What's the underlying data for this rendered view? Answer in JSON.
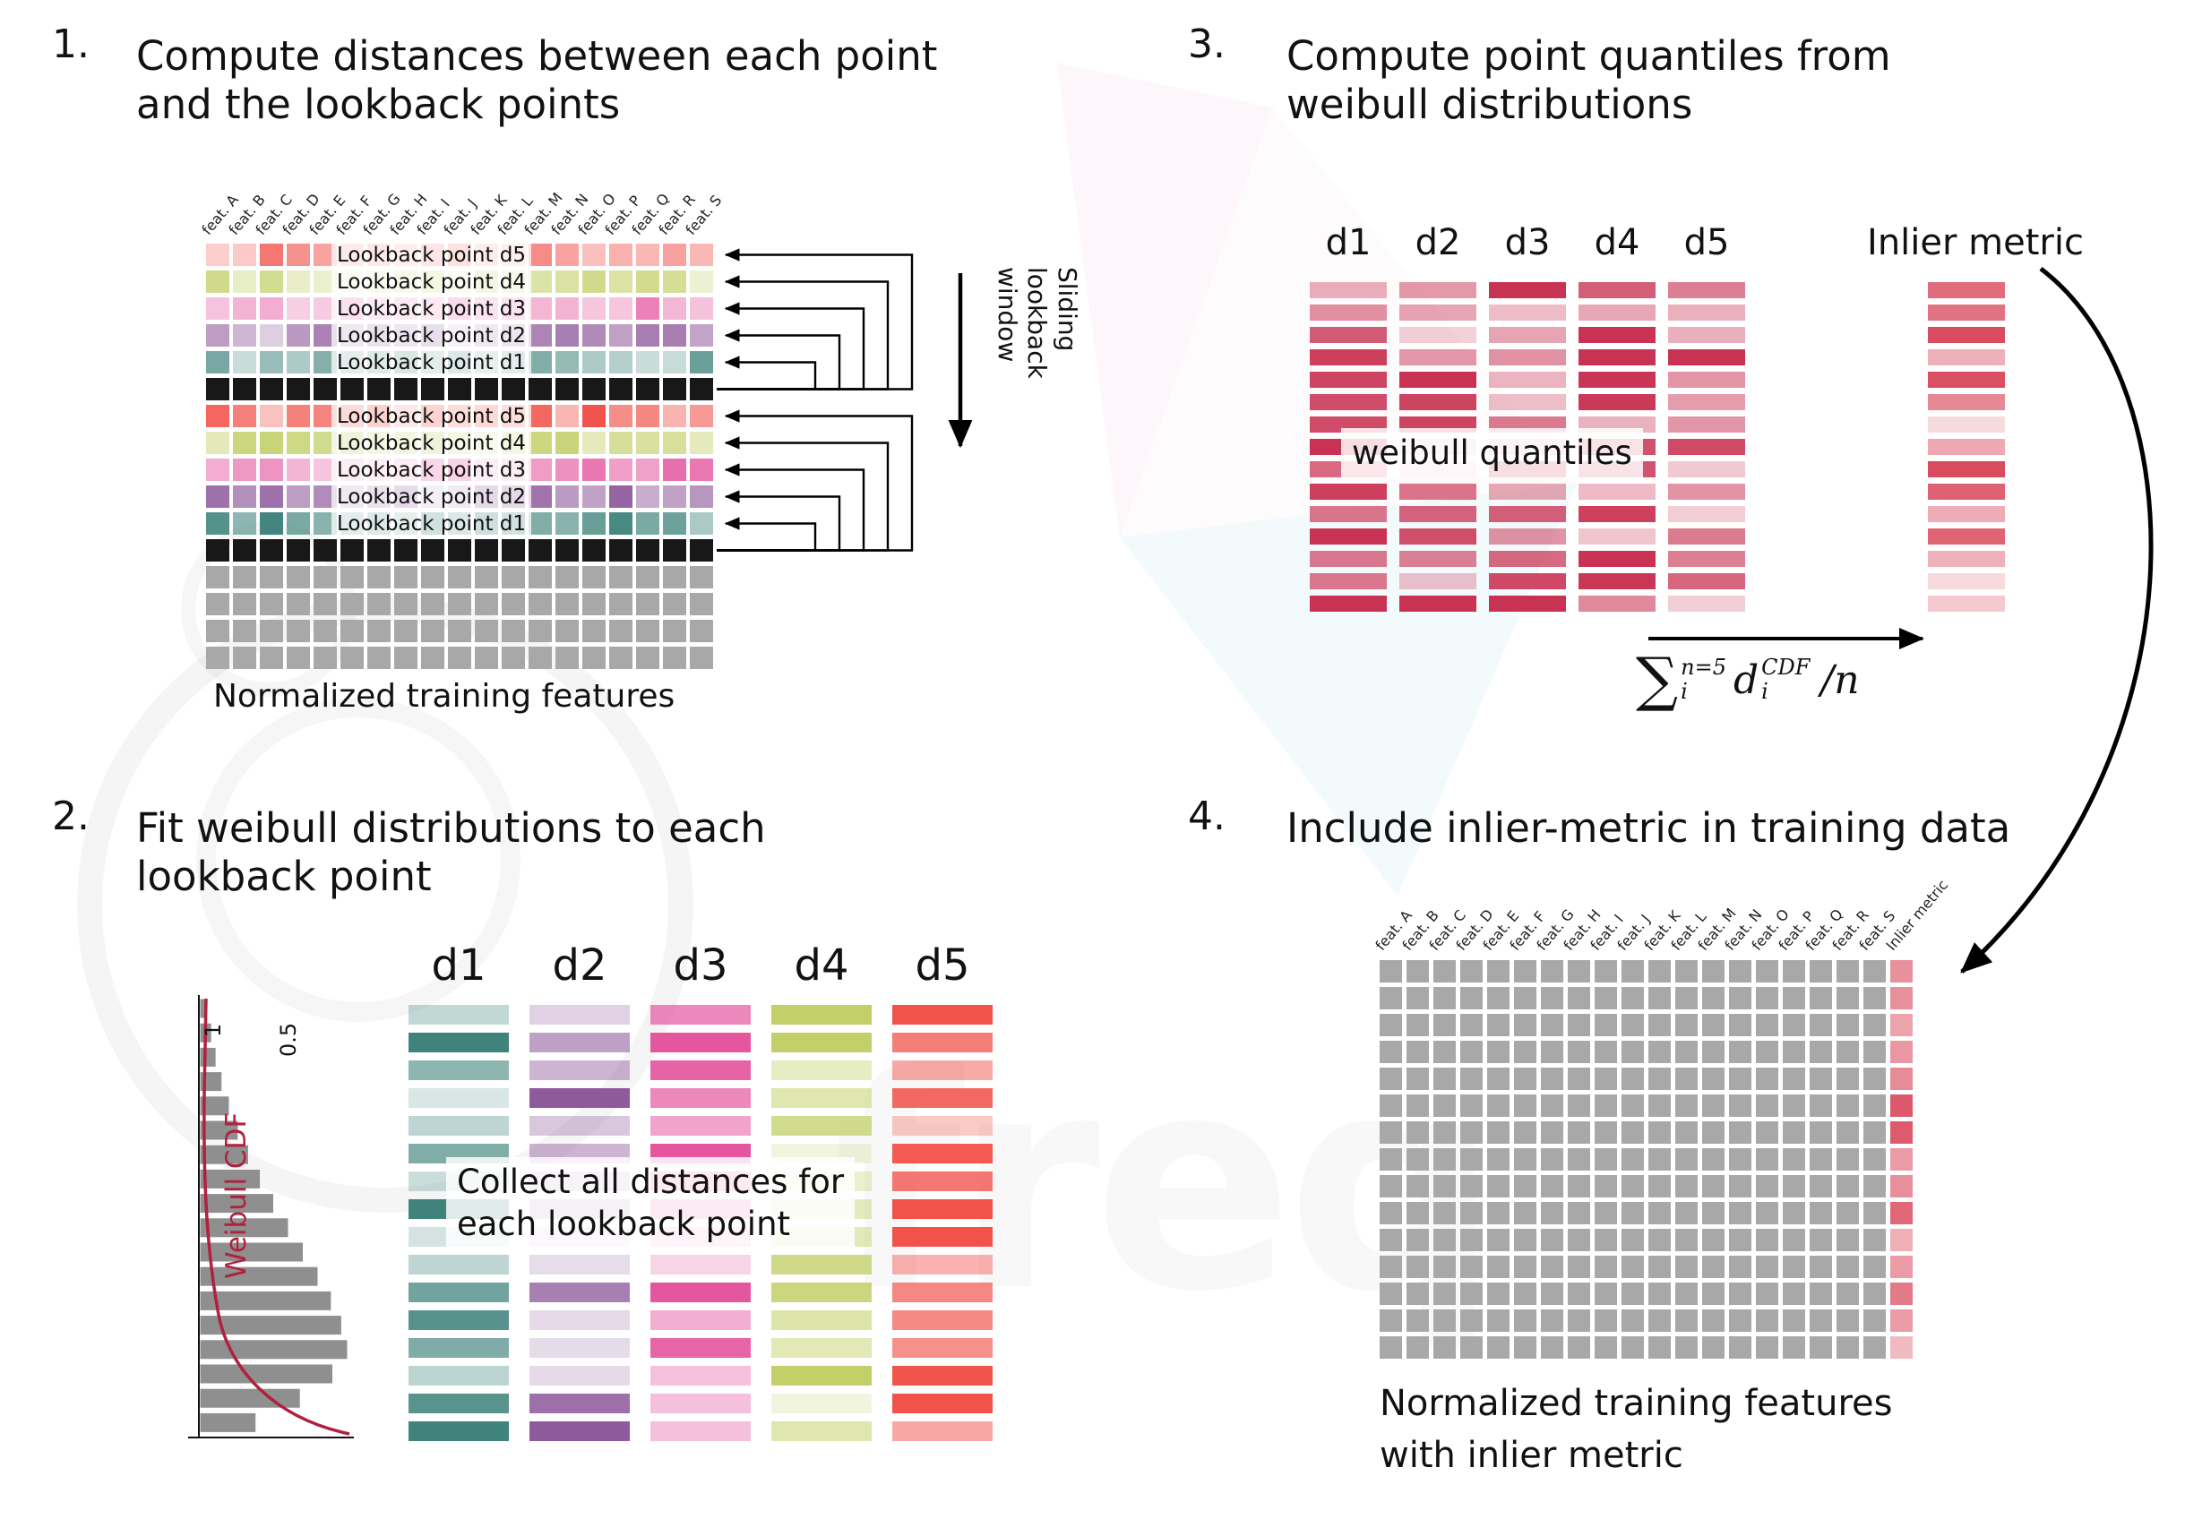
{
  "watermark": {
    "text": "freq"
  },
  "palette": {
    "d1": "#3f837c",
    "d2": "#8f5a9c",
    "d3": "#e4579f",
    "d4": "#c3d06a",
    "d5": "#f1534b",
    "current_row": "#181818",
    "feature_cell": "#a8a8a8",
    "quantile": "#c93353",
    "inlier": "#d94b5e",
    "curve": "#b0213f",
    "arrow": "#000000"
  },
  "step1": {
    "number": "1.",
    "title": "Compute distances between each point and the lookback points",
    "features": [
      "feat. A",
      "feat. B",
      "feat. C",
      "feat. D",
      "feat. E",
      "feat. F",
      "feat. G",
      "feat. H",
      "feat. I",
      "feat. J",
      "feat. K",
      "feat. L",
      "feat. M",
      "feat. N",
      "feat. O",
      "feat. P",
      "feat. Q",
      "feat. R",
      "feat. S"
    ],
    "rows": [
      {
        "kind": "lookback",
        "d": "d5",
        "label": "Lookback point d5",
        "strength": 0.8
      },
      {
        "kind": "lookback",
        "d": "d4",
        "label": "Lookback point d4",
        "strength": 0.8
      },
      {
        "kind": "lookback",
        "d": "d3",
        "label": "Lookback point d3",
        "strength": 0.8
      },
      {
        "kind": "lookback",
        "d": "d2",
        "label": "Lookback point d2",
        "strength": 0.8
      },
      {
        "kind": "lookback",
        "d": "d1",
        "label": "Lookback point d1",
        "strength": 0.8
      },
      {
        "kind": "current"
      },
      {
        "kind": "lookback",
        "d": "d5",
        "label": "Lookback point d5",
        "strength": 1
      },
      {
        "kind": "lookback",
        "d": "d4",
        "label": "Lookback point d4",
        "strength": 1
      },
      {
        "kind": "lookback",
        "d": "d3",
        "label": "Lookback point d3",
        "strength": 1
      },
      {
        "kind": "lookback",
        "d": "d2",
        "label": "Lookback point d2",
        "strength": 1
      },
      {
        "kind": "lookback",
        "d": "d1",
        "label": "Lookback point d1",
        "strength": 1
      },
      {
        "kind": "current"
      },
      {
        "kind": "plain"
      },
      {
        "kind": "plain"
      },
      {
        "kind": "plain"
      },
      {
        "kind": "plain"
      }
    ],
    "sliding_label_lines": [
      "Sliding",
      "lookback",
      "window"
    ],
    "caption": "Normalized training features"
  },
  "step2": {
    "number": "2.",
    "title": "Fit weibull distributions to each lookback point",
    "cdf_label": "Weibull CDF",
    "ticks": [
      "1",
      "0.5"
    ],
    "hist_bars": [
      0.05,
      0.08,
      0.11,
      0.15,
      0.2,
      0.26,
      0.33,
      0.41,
      0.5,
      0.6,
      0.7,
      0.8,
      0.89,
      0.96,
      1.0,
      0.9,
      0.68,
      0.38
    ],
    "columns": [
      "d1",
      "d2",
      "d3",
      "d4",
      "d5"
    ],
    "bars_per_column": 16,
    "overlay_lines": [
      "Collect all distances for",
      "each lookback point"
    ]
  },
  "step3": {
    "number": "3.",
    "title": "Compute point quantiles from weibull distributions",
    "columns": [
      "d1",
      "d2",
      "d3",
      "d4",
      "d5"
    ],
    "bars_per_column": 15,
    "overlay": "weibull quantiles",
    "inlier_label": "Inlier metric",
    "formula": {
      "sum": "∑",
      "upper": "n=5",
      "lower": "i",
      "term": "d",
      "term_sup": "CDF",
      "term_sub": "i",
      "tail": "/n"
    }
  },
  "step4": {
    "number": "4.",
    "title": "Include inlier-metric in training data",
    "features": [
      "feat. A",
      "feat. B",
      "feat. C",
      "feat. D",
      "feat. E",
      "feat. F",
      "feat. G",
      "feat. H",
      "feat. I",
      "feat. J",
      "feat. K",
      "feat. L",
      "feat. M",
      "feat. N",
      "feat. O",
      "feat. P",
      "feat. Q",
      "feat. R",
      "feat. S",
      "Inlier metric"
    ],
    "grid": {
      "rows": 15,
      "cols": 20
    },
    "caption_lines": [
      "Normalized training features",
      "with inlier metric"
    ]
  }
}
